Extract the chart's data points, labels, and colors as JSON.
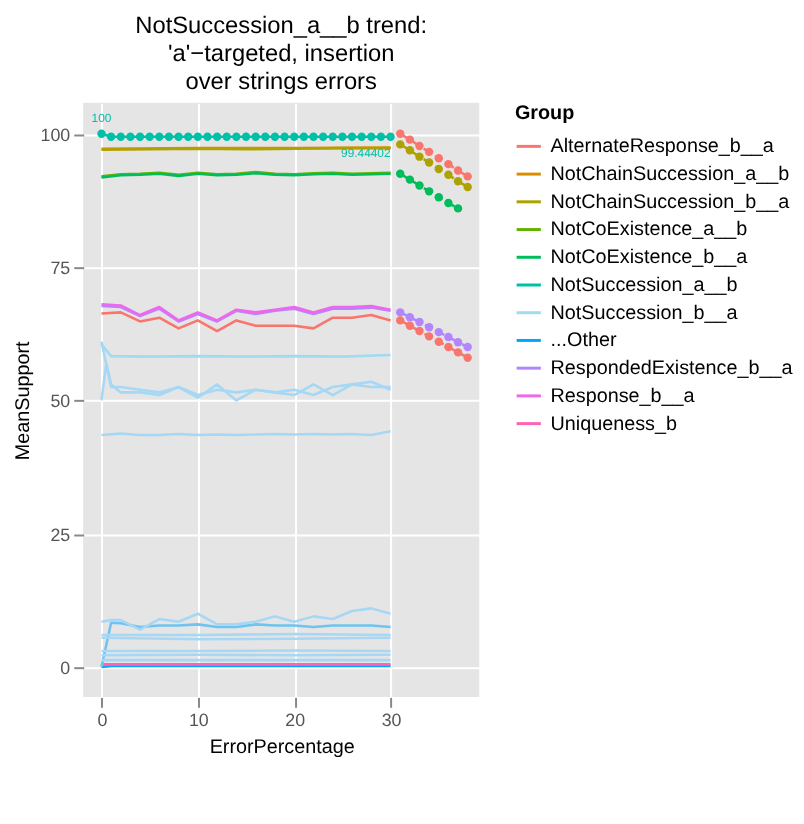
{
  "chart_data": {
    "type": "line",
    "title": "NotSuccession_a__b trend:\n'a'−targeted, insertion\nover strings errors",
    "xlabel": "ErrorPercentage",
    "ylabel": "MeanSupport",
    "legend_title": "Group",
    "legend": "right",
    "grid": true,
    "xlim": [
      -1.9,
      39.2
    ],
    "xticks": [
      0,
      10,
      20,
      30
    ],
    "ylim": [
      -5.6,
      105.8
    ],
    "yticks": [
      0,
      25,
      50,
      75,
      100
    ],
    "annotations": [
      {
        "text": "100",
        "x": 0,
        "y": 100
      },
      {
        "text": "99.44402",
        "x": 30,
        "y": 99.44402
      }
    ],
    "series": [
      {
        "name": "AlternateResponse_b__a",
        "color": "#f8766d",
        "x": [
          0,
          2,
          4,
          6,
          8,
          10,
          12,
          14,
          16,
          18,
          20,
          22,
          24,
          26,
          28,
          30
        ],
        "values": [
          66.3,
          66.5,
          64.8,
          65.5,
          63.5,
          65,
          63,
          65,
          64,
          64,
          64,
          63.5,
          65.5,
          65.5,
          66,
          65
        ]
      },
      {
        "name": "NotChainSuccession_a__b",
        "color": "#db8e00",
        "x": [
          0,
          10,
          20,
          30
        ],
        "values": [
          97.2,
          97.3,
          97.3,
          97.4
        ]
      },
      {
        "name": "NotChainSuccession_b__a",
        "color": "#aea200",
        "x": [
          0,
          5,
          10,
          15,
          20,
          25,
          30
        ],
        "values": [
          97,
          97.1,
          97.2,
          97.1,
          97.2,
          97.3,
          97.3
        ]
      },
      {
        "name": "NotCoExistence_a__b",
        "color": "#64b200",
        "x": [
          0,
          2,
          4,
          6,
          8,
          10,
          12,
          14,
          16,
          18,
          20,
          22,
          24,
          26,
          28,
          30
        ],
        "values": [
          92,
          92.4,
          92.5,
          92.7,
          92.3,
          92.7,
          92.4,
          92.5,
          92.8,
          92.5,
          92.4,
          92.6,
          92.7,
          92.5,
          92.6,
          92.7
        ]
      },
      {
        "name": "NotCoExistence_b__a",
        "color": "#00bd5c",
        "x": [
          0,
          2,
          4,
          6,
          8,
          10,
          12,
          14,
          16,
          18,
          20,
          22,
          24,
          26,
          28,
          30
        ],
        "values": [
          91.8,
          92.2,
          92.3,
          92.5,
          92.1,
          92.5,
          92.2,
          92.3,
          92.6,
          92.3,
          92.2,
          92.4,
          92.5,
          92.3,
          92.4,
          92.5
        ]
      },
      {
        "name": "NotSuccession_a__b",
        "color": "#00c1a7",
        "marker": "circle",
        "x": [
          0,
          1,
          2,
          3,
          4,
          5,
          6,
          7,
          8,
          9,
          10,
          11,
          12,
          13,
          14,
          15,
          16,
          17,
          18,
          19,
          20,
          21,
          22,
          23,
          24,
          25,
          26,
          27,
          28,
          29,
          30
        ],
        "values": [
          100,
          99.44402,
          99.44402,
          99.44402,
          99.44402,
          99.44402,
          99.44402,
          99.44402,
          99.44402,
          99.44402,
          99.44402,
          99.44402,
          99.44402,
          99.44402,
          99.44402,
          99.44402,
          99.44402,
          99.44402,
          99.44402,
          99.44402,
          99.44402,
          99.44402,
          99.44402,
          99.44402,
          99.44402,
          99.44402,
          99.44402,
          99.44402,
          99.44402,
          99.44402,
          99.44402
        ]
      },
      {
        "name": "NotSuccession_b__a",
        "color": "#9fdcf0",
        "x": [
          0,
          1,
          5,
          10,
          15,
          20,
          25,
          30
        ],
        "values": [
          60.5,
          58.3,
          58.2,
          58.3,
          58.2,
          58.3,
          58.2,
          58.5
        ]
      },
      {
        "name": "...Other",
        "color": "#00a6ff",
        "x": [
          0,
          1,
          5,
          10,
          15,
          20,
          25,
          30
        ],
        "values": [
          0,
          0.2,
          0.2,
          0.2,
          0.2,
          0.2,
          0.2,
          0.2
        ]
      },
      {
        "name": "RespondedExistence_b__a",
        "color": "#b385ff",
        "x": [
          0,
          2,
          4,
          6,
          8,
          10,
          12,
          14,
          16,
          18,
          20,
          22,
          24,
          26,
          28,
          30
        ],
        "values": [
          67.7,
          67.5,
          65.8,
          67.2,
          64.8,
          66.2,
          64.8,
          66.8,
          66.2,
          66.8,
          67.2,
          66.2,
          67.2,
          67.2,
          67.4,
          66.8
        ]
      },
      {
        "name": "Response_b__a",
        "color": "#ef67eb",
        "x": [
          0,
          2,
          4,
          6,
          8,
          10,
          12,
          14,
          16,
          18,
          20,
          22,
          24,
          26,
          28,
          30
        ],
        "values": [
          68,
          67.8,
          66,
          67.5,
          65,
          66.5,
          65,
          67,
          66.5,
          67,
          67.5,
          66.5,
          67.5,
          67.5,
          67.7,
          67
        ]
      },
      {
        "name": "Uniqueness_b",
        "color": "#ff63b6",
        "x": [
          0,
          10,
          20,
          30
        ],
        "values": [
          0.5,
          0.5,
          0.5,
          0.5
        ]
      },
      {
        "color": "#a6d8f5",
        "x": [
          0,
          1,
          2,
          4,
          6,
          8,
          10,
          12,
          14,
          16,
          18,
          20,
          22,
          24,
          26,
          28,
          30
        ],
        "values": [
          61,
          52.5,
          52.5,
          52,
          51.5,
          52.5,
          51,
          52,
          51.5,
          52,
          51.5,
          52,
          51,
          52.5,
          53,
          52.5,
          52.5
        ]
      },
      {
        "color": "#a6d8f5",
        "x": [
          0,
          0.5,
          1,
          2,
          4,
          6,
          8,
          10,
          12,
          14,
          16,
          18,
          20,
          22,
          24,
          26,
          28,
          30
        ],
        "values": [
          50,
          57,
          53,
          51.5,
          51.5,
          51,
          52.5,
          50.5,
          53,
          50,
          52,
          51.5,
          51,
          53,
          51,
          53,
          53.5,
          52
        ]
      },
      {
        "color": "#a6d8f5",
        "x": [
          0,
          2,
          4,
          6,
          8,
          10,
          12,
          14,
          16,
          18,
          20,
          22,
          24,
          26,
          28,
          30
        ],
        "values": [
          43.5,
          43.8,
          43.5,
          43.5,
          43.7,
          43.5,
          43.6,
          43.5,
          43.6,
          43.7,
          43.6,
          43.7,
          43.6,
          43.7,
          43.5,
          44.2
        ]
      },
      {
        "color": "#6ec3f0",
        "x": [
          0,
          1,
          2,
          4,
          6,
          8,
          10,
          12,
          14,
          16,
          18,
          20,
          22,
          24,
          26,
          28,
          30
        ],
        "values": [
          0,
          8.3,
          8.2,
          7.5,
          7.8,
          7.8,
          8,
          7.5,
          7.5,
          8,
          7.8,
          7.8,
          7.5,
          7.8,
          7.8,
          7.8,
          7.5
        ]
      },
      {
        "color": "#a6d8f5",
        "x": [
          0,
          1,
          2,
          4,
          6,
          8,
          10,
          12,
          14,
          16,
          18,
          20,
          22,
          24,
          26,
          28,
          30
        ],
        "values": [
          8.5,
          8.8,
          8.8,
          7,
          9,
          8.5,
          10,
          8,
          8,
          8.5,
          9.5,
          8.5,
          9.5,
          9,
          10.5,
          11,
          10
        ]
      },
      {
        "color": "#a6d8f5",
        "x": [
          0,
          10,
          20,
          30
        ],
        "values": [
          6,
          6,
          6.2,
          6
        ]
      },
      {
        "color": "#a6d8f5",
        "x": [
          0,
          10,
          20,
          30
        ],
        "values": [
          5.5,
          5.2,
          5.3,
          5.5
        ]
      },
      {
        "color": "#a6d8f5",
        "x": [
          0,
          10,
          20,
          30
        ],
        "values": [
          3,
          3,
          3.1,
          3
        ]
      },
      {
        "color": "#a6d8f5",
        "x": [
          0,
          10,
          20,
          30
        ],
        "values": [
          2.2,
          2.3,
          2.2,
          2.3
        ]
      },
      {
        "color": "#a6d8f5",
        "x": [
          0,
          10,
          20,
          30
        ],
        "values": [
          1.3,
          1.3,
          1.3,
          1.3
        ]
      },
      {
        "color": "#f8766d",
        "line_style": "dashed",
        "marker": "circle",
        "x": [
          31,
          32,
          33,
          34,
          35,
          36,
          37,
          38
        ],
        "values": [
          100,
          98.9,
          97.7,
          96.6,
          95.4,
          94.3,
          93.1,
          92
        ]
      },
      {
        "color": "#aea200",
        "line_style": "dashed",
        "marker": "circle",
        "x": [
          31,
          32,
          33,
          34,
          35,
          36,
          37,
          38
        ],
        "values": [
          98,
          96.9,
          95.7,
          94.6,
          93.4,
          92.3,
          91.1,
          90
        ]
      },
      {
        "color": "#00bd5c",
        "line_style": "dashed",
        "marker": "circle",
        "x": [
          31,
          32,
          33,
          34,
          35,
          36,
          37
        ],
        "values": [
          92.5,
          91.4,
          90.3,
          89.2,
          88.1,
          87,
          86
        ]
      },
      {
        "color": "#b385ff",
        "line_style": "dashed",
        "marker": "circle",
        "x": [
          31,
          32,
          33,
          34,
          35,
          36,
          37,
          38
        ],
        "values": [
          66.5,
          65.6,
          64.7,
          63.7,
          62.8,
          61.9,
          60.9,
          60
        ]
      },
      {
        "color": "#f8766d",
        "line_style": "dashed",
        "marker": "circle",
        "x": [
          31,
          32,
          33,
          34,
          35,
          36,
          37,
          38
        ],
        "values": [
          65,
          64,
          63,
          62,
          61,
          60,
          59,
          58
        ]
      }
    ]
  }
}
